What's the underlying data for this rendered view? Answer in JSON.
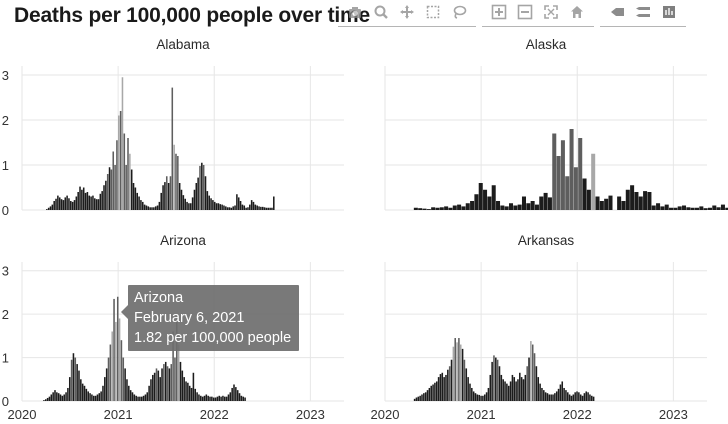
{
  "title": "Deaths per 100,000 people over time",
  "toolbar": {
    "groups": [
      [
        "camera-icon",
        "zoom-icon",
        "pan-icon",
        "box-select-icon",
        "lasso-select-icon"
      ],
      [
        "zoom-in-icon",
        "zoom-out-icon",
        "autoscale-icon",
        "reset-axes-icon"
      ],
      [
        "spike-lines-icon",
        "hover-closest-icon",
        "hover-compare-icon"
      ]
    ]
  },
  "tooltip": {
    "line1": "Arizona",
    "line2": "February 6, 2021",
    "line3": "1.82 per 100,000 people"
  },
  "chart_data": {
    "type": "bar",
    "layout": "facet-2x2",
    "ylim": [
      0,
      3.2
    ],
    "y_ticks": [
      0,
      1,
      2,
      3
    ],
    "x_ticks": [
      "2020",
      "2021",
      "2022",
      "2023"
    ],
    "xlim": [
      2020.0,
      2023.35
    ],
    "grid": true,
    "colors": {
      "bar_dark": "#1c1c1c",
      "bar_mid": "#5e5e5e",
      "bar_light": "#a8a8a8",
      "grid": "#e6e6e6"
    },
    "panels": [
      {
        "name": "Alabama",
        "x0": 2020.25,
        "step": 0.0192,
        "values": [
          0.02,
          0.05,
          0.08,
          0.12,
          0.2,
          0.25,
          0.32,
          0.28,
          0.24,
          0.22,
          0.28,
          0.32,
          0.26,
          0.2,
          0.18,
          0.22,
          0.3,
          0.4,
          0.52,
          0.45,
          0.5,
          0.38,
          0.4,
          0.32,
          0.3,
          0.32,
          0.26,
          0.24,
          0.24,
          0.36,
          0.42,
          0.55,
          0.65,
          0.8,
          0.95,
          0.9,
          1.3,
          1.0,
          1.55,
          2.1,
          2.2,
          2.95,
          1.7,
          1.0,
          1.6,
          1.25,
          0.9,
          0.6,
          0.5,
          0.38,
          0.3,
          0.22,
          0.18,
          0.12,
          0.1,
          0.08,
          0.06,
          0.06,
          0.06,
          0.08,
          0.1,
          0.18,
          0.38,
          0.55,
          0.62,
          0.75,
          0.6,
          0.75,
          2.72,
          1.45,
          1.25,
          1.2,
          0.6,
          0.45,
          0.33,
          0.25,
          0.18,
          0.15,
          0.15,
          0.28,
          0.45,
          0.6,
          0.72,
          0.98,
          1.05,
          1.0,
          0.75,
          0.42,
          0.32,
          0.26,
          0.22,
          0.18,
          0.15,
          0.15,
          0.13,
          0.12,
          0.1,
          0.08,
          0.06,
          0.06,
          0.05,
          0.08,
          0.1,
          0.35,
          0.28,
          0.2,
          0.12,
          0.1,
          0.05,
          0.06,
          0.12,
          0.22,
          0.18,
          0.12,
          0.1,
          0.08,
          0.07,
          0.07,
          0.06,
          0.05,
          0.05,
          0.05,
          0.05,
          0.3
        ]
      },
      {
        "name": "Alaska",
        "x0": 2020.3,
        "step": 0.045,
        "values": [
          0.05,
          0.04,
          0.03,
          0.02,
          0.06,
          0.05,
          0.06,
          0.08,
          0.05,
          0.1,
          0.12,
          0.08,
          0.15,
          0.2,
          0.35,
          0.6,
          0.45,
          0.3,
          0.55,
          0.2,
          0.1,
          0.08,
          0.15,
          0.1,
          0.12,
          0.3,
          0.15,
          0.2,
          0.12,
          0.3,
          0.38,
          0.28,
          1.7,
          1.2,
          1.55,
          0.75,
          1.8,
          0.95,
          1.6,
          0.7,
          0.45,
          1.25,
          0.3,
          0.2,
          0.25,
          0.32,
          0,
          0.3,
          0.2,
          0.45,
          0.55,
          0.4,
          0.3,
          0.42,
          0.4,
          0.1,
          0.15,
          0.08,
          0.12,
          0.05,
          0.05,
          0.08,
          0.1,
          0.06,
          0.05,
          0.05,
          0.08,
          0.04,
          0.05,
          0.1,
          0.06,
          0.12,
          0.05
        ]
      },
      {
        "name": "Arizona",
        "x0": 2020.22,
        "step": 0.0192,
        "values": [
          0.02,
          0.04,
          0.07,
          0.1,
          0.15,
          0.2,
          0.25,
          0.2,
          0.18,
          0.15,
          0.12,
          0.15,
          0.2,
          0.3,
          0.55,
          0.95,
          1.1,
          1.0,
          0.85,
          0.7,
          0.5,
          0.4,
          0.35,
          0.28,
          0.22,
          0.18,
          0.15,
          0.12,
          0.12,
          0.15,
          0.18,
          0.22,
          0.35,
          0.55,
          0.75,
          1.0,
          1.3,
          1.6,
          2.35,
          1.82,
          2.4,
          1.9,
          1.4,
          1.0,
          0.75,
          0.5,
          0.35,
          0.25,
          0.2,
          0.15,
          0.12,
          0.1,
          0.1,
          0.1,
          0.12,
          0.15,
          0.2,
          0.35,
          0.5,
          0.6,
          0.65,
          0.75,
          0.7,
          0.55,
          0.75,
          0.85,
          0.9,
          0.8,
          0.75,
          0.85,
          1.6,
          1.0,
          1.85,
          1.3,
          0.9,
          0.7,
          0.55,
          0.45,
          0.42,
          0.35,
          0.3,
          0.65,
          0.28,
          0.2,
          0.15,
          0.12,
          0.1,
          0.12,
          0.15,
          0.12,
          0.1,
          0.1,
          0.08,
          0.08,
          0.1,
          0.12,
          0.1,
          0.12,
          0.1,
          0.1,
          0.15,
          0.2,
          0.3,
          0.38,
          0.32,
          0.25,
          0.18,
          0.12,
          0.1,
          0.08
        ]
      },
      {
        "name": "Arkansas",
        "x0": 2020.3,
        "step": 0.0192,
        "values": [
          0.05,
          0.08,
          0.1,
          0.12,
          0.15,
          0.18,
          0.2,
          0.25,
          0.3,
          0.35,
          0.38,
          0.42,
          0.45,
          0.55,
          0.62,
          0.65,
          0.55,
          0.6,
          0.72,
          0.8,
          0.95,
          1.25,
          1.45,
          1.35,
          1.45,
          1.3,
          1.2,
          0.95,
          0.75,
          0.55,
          0.4,
          0.3,
          0.22,
          0.18,
          0.15,
          0.14,
          0.12,
          0.12,
          0.15,
          0.2,
          0.3,
          0.6,
          0.9,
          1.05,
          1.0,
          0.95,
          0.8,
          0.6,
          0.5,
          0.45,
          0.4,
          0.35,
          0.45,
          0.6,
          0.55,
          0.45,
          0.5,
          0.65,
          0.55,
          0.5,
          0.6,
          0.8,
          1.0,
          1.38,
          1.3,
          1.1,
          0.8,
          0.55,
          0.4,
          0.3,
          0.25,
          0.2,
          0.18,
          0.15,
          0.15,
          0.15,
          0.18,
          0.22,
          0.28,
          0.38,
          0.45,
          0.3,
          0.25,
          0.2,
          0.15,
          0.12,
          0.15,
          0.2,
          0.22,
          0.2,
          0.15,
          0.12,
          0.18,
          0.22,
          0.2,
          0.15,
          0.12,
          0.1
        ]
      }
    ]
  }
}
